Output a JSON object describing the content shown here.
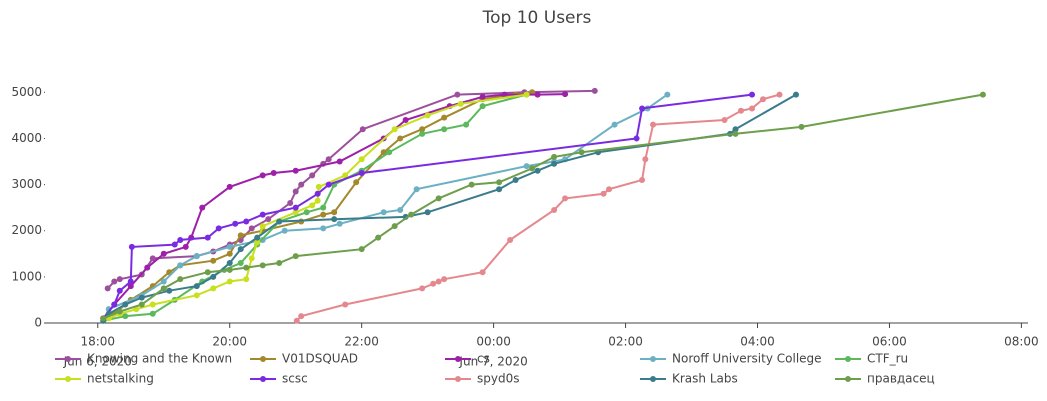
{
  "chart_data": {
    "type": "line",
    "title": "Top 10 Users",
    "xlim": [
      "2020-06-06T17:12",
      "2020-06-07T08:06"
    ],
    "xticks": [
      {
        "value": "2020-06-06T18:00",
        "label": "18:00",
        "sublabel": "Jun 6, 2020"
      },
      {
        "value": "2020-06-06T20:00",
        "label": "20:00"
      },
      {
        "value": "2020-06-06T22:00",
        "label": "22:00"
      },
      {
        "value": "2020-06-07T00:00",
        "label": "00:00",
        "sublabel": "Jun 7, 2020"
      },
      {
        "value": "2020-06-07T02:00",
        "label": "02:00"
      },
      {
        "value": "2020-06-07T04:00",
        "label": "04:00"
      },
      {
        "value": "2020-06-07T06:00",
        "label": "06:00"
      },
      {
        "value": "2020-06-07T08:00",
        "label": "08:00"
      }
    ],
    "ylim": [
      0,
      5700
    ],
    "yticks": [
      0,
      1000,
      2000,
      3000,
      4000,
      5000
    ],
    "grid": false,
    "series": [
      {
        "name": "Knowing and the Known",
        "color": "#9c4f9c",
        "x": [
          "2020-06-06T18:09",
          "2020-06-06T18:15",
          "2020-06-06T18:20",
          "2020-06-06T18:40",
          "2020-06-06T18:50",
          "2020-06-06T19:30",
          "2020-06-06T19:45",
          "2020-06-06T20:00",
          "2020-06-06T20:10",
          "2020-06-06T20:20",
          "2020-06-06T20:35",
          "2020-06-06T20:55",
          "2020-06-06T21:00",
          "2020-06-06T21:05",
          "2020-06-06T21:15",
          "2020-06-06T21:25",
          "2020-06-06T21:30",
          "2020-06-06T22:01",
          "2020-06-06T23:27",
          "2020-06-07T00:28",
          "2020-06-07T01:32"
        ],
        "values": [
          750,
          900,
          950,
          1050,
          1400,
          1450,
          1550,
          1700,
          1800,
          2050,
          2250,
          2600,
          2850,
          3000,
          3200,
          3450,
          3550,
          4200,
          4950,
          5000,
          5030
        ]
      },
      {
        "name": "V01DSQUAD",
        "color": "#a3882c",
        "x": [
          "2020-06-06T18:05",
          "2020-06-06T18:15",
          "2020-06-06T18:30",
          "2020-06-06T18:50",
          "2020-06-06T19:05",
          "2020-06-06T19:15",
          "2020-06-06T19:45",
          "2020-06-06T20:00",
          "2020-06-06T20:10",
          "2020-06-06T20:30",
          "2020-06-06T21:05",
          "2020-06-06T21:25",
          "2020-06-06T21:35",
          "2020-06-06T21:55",
          "2020-06-06T22:20",
          "2020-06-06T22:35",
          "2020-06-06T22:55",
          "2020-06-06T23:15",
          "2020-06-06T23:50",
          "2020-06-07T00:20",
          "2020-06-07T00:35"
        ],
        "values": [
          100,
          200,
          500,
          800,
          1100,
          1250,
          1350,
          1500,
          1900,
          2000,
          2200,
          2350,
          2400,
          3050,
          3700,
          4000,
          4200,
          4450,
          4850,
          4950,
          5000
        ]
      },
      {
        "name": "cs",
        "color": "#9c20a8",
        "x": [
          "2020-06-06T18:05",
          "2020-06-06T18:15",
          "2020-06-06T18:30",
          "2020-06-06T18:45",
          "2020-06-06T19:00",
          "2020-06-06T19:20",
          "2020-06-06T19:25",
          "2020-06-06T19:35",
          "2020-06-06T20:00",
          "2020-06-06T20:30",
          "2020-06-06T20:40",
          "2020-06-06T21:00",
          "2020-06-06T21:40",
          "2020-06-06T22:20",
          "2020-06-06T22:40",
          "2020-06-06T23:20",
          "2020-06-06T23:50",
          "2020-06-07T00:10",
          "2020-06-07T00:40",
          "2020-06-07T01:05"
        ],
        "values": [
          100,
          400,
          800,
          1200,
          1500,
          1650,
          1850,
          2500,
          2950,
          3200,
          3250,
          3300,
          3500,
          4000,
          4400,
          4700,
          4900,
          4950,
          4950,
          4960
        ]
      },
      {
        "name": "Noroff University College",
        "color": "#6cb0c4",
        "x": [
          "2020-06-06T18:10",
          "2020-06-06T18:40",
          "2020-06-06T19:00",
          "2020-06-06T19:15",
          "2020-06-06T19:30",
          "2020-06-06T20:00",
          "2020-06-06T20:30",
          "2020-06-06T20:50",
          "2020-06-06T21:25",
          "2020-06-06T21:40",
          "2020-06-06T22:20",
          "2020-06-06T22:35",
          "2020-06-06T22:50",
          "2020-06-07T00:30",
          "2020-06-07T00:55",
          "2020-06-07T01:05",
          "2020-06-07T01:50",
          "2020-06-07T02:20",
          "2020-06-07T02:38"
        ],
        "values": [
          300,
          600,
          900,
          1250,
          1450,
          1650,
          1800,
          2000,
          2050,
          2150,
          2400,
          2450,
          2900,
          3400,
          3500,
          3550,
          4300,
          4650,
          4950
        ]
      },
      {
        "name": "CTF_ru",
        "color": "#5cb85c",
        "x": [
          "2020-06-06T18:05",
          "2020-06-06T18:25",
          "2020-06-06T18:50",
          "2020-06-06T19:10",
          "2020-06-06T19:35",
          "2020-06-06T19:55",
          "2020-06-06T20:10",
          "2020-06-06T20:25",
          "2020-06-06T20:45",
          "2020-06-06T21:10",
          "2020-06-06T21:25",
          "2020-06-06T21:35",
          "2020-06-06T22:00",
          "2020-06-06T22:25",
          "2020-06-06T22:55",
          "2020-06-06T23:15",
          "2020-06-06T23:35",
          "2020-06-06T23:50",
          "2020-06-07T00:30"
        ],
        "values": [
          50,
          150,
          200,
          500,
          900,
          1150,
          1300,
          1700,
          2200,
          2400,
          2500,
          3000,
          3300,
          3700,
          4100,
          4200,
          4300,
          4700,
          4950
        ]
      },
      {
        "name": "netstalking",
        "color": "#c8e01e",
        "x": [
          "2020-06-06T18:10",
          "2020-06-06T18:20",
          "2020-06-06T18:35",
          "2020-06-06T18:50",
          "2020-06-06T19:30",
          "2020-06-06T19:45",
          "2020-06-06T20:00",
          "2020-06-06T20:15",
          "2020-06-06T20:20",
          "2020-06-06T20:25",
          "2020-06-06T20:30",
          "2020-06-06T21:00",
          "2020-06-06T21:15",
          "2020-06-06T21:20",
          "2020-06-06T21:21",
          "2020-06-06T21:45",
          "2020-06-06T22:00",
          "2020-06-06T22:30",
          "2020-06-06T23:00",
          "2020-06-06T23:30",
          "2020-06-07T00:30"
        ],
        "values": [
          100,
          200,
          300,
          400,
          600,
          750,
          900,
          950,
          1400,
          1750,
          2100,
          2400,
          2550,
          2650,
          2950,
          3200,
          3550,
          4200,
          4500,
          4750,
          4950
        ]
      },
      {
        "name": "scsc",
        "color": "#7a2be2",
        "x": [
          "2020-06-06T18:05",
          "2020-06-06T18:15",
          "2020-06-06T18:20",
          "2020-06-06T18:30",
          "2020-06-06T18:31",
          "2020-06-06T19:10",
          "2020-06-06T19:15",
          "2020-06-06T19:40",
          "2020-06-06T19:50",
          "2020-06-06T20:05",
          "2020-06-06T20:15",
          "2020-06-06T20:30",
          "2020-06-06T21:00",
          "2020-06-06T21:20",
          "2020-06-06T21:30",
          "2020-06-06T22:00",
          "2020-06-07T02:10",
          "2020-06-07T02:15",
          "2020-06-07T03:55"
        ],
        "values": [
          100,
          400,
          700,
          900,
          1650,
          1700,
          1800,
          1850,
          2050,
          2150,
          2200,
          2350,
          2500,
          2800,
          3000,
          3250,
          4000,
          4650,
          4950
        ]
      },
      {
        "name": "spyd0s",
        "color": "#e5888e",
        "x": [
          "2020-06-06T21:01",
          "2020-06-06T21:05",
          "2020-06-06T21:45",
          "2020-06-06T22:55",
          "2020-06-06T23:05",
          "2020-06-06T23:10",
          "2020-06-06T23:15",
          "2020-06-06T23:50",
          "2020-06-07T00:15",
          "2020-06-07T00:55",
          "2020-06-07T01:05",
          "2020-06-07T01:40",
          "2020-06-07T01:45",
          "2020-06-07T02:15",
          "2020-06-07T02:18",
          "2020-06-07T02:25",
          "2020-06-07T03:30",
          "2020-06-07T03:45",
          "2020-06-07T03:55",
          "2020-06-07T04:05",
          "2020-06-07T04:20"
        ],
        "values": [
          50,
          150,
          400,
          750,
          850,
          900,
          950,
          1100,
          1800,
          2450,
          2700,
          2800,
          2900,
          3100,
          3550,
          4300,
          4400,
          4600,
          4650,
          4850,
          4950
        ]
      },
      {
        "name": "Krash Labs",
        "color": "#3b7c8c",
        "x": [
          "2020-06-06T18:05",
          "2020-06-06T18:10",
          "2020-06-06T18:25",
          "2020-06-06T18:40",
          "2020-06-06T19:05",
          "2020-06-06T19:30",
          "2020-06-06T19:45",
          "2020-06-06T20:00",
          "2020-06-06T20:10",
          "2020-06-06T20:25",
          "2020-06-06T20:45",
          "2020-06-06T21:35",
          "2020-06-06T22:40",
          "2020-06-06T23:00",
          "2020-06-07T00:05",
          "2020-06-07T00:20",
          "2020-06-07T00:40",
          "2020-06-07T00:55",
          "2020-06-07T01:35",
          "2020-06-07T03:35",
          "2020-06-07T03:40",
          "2020-06-07T04:35"
        ],
        "values": [
          50,
          200,
          400,
          550,
          700,
          800,
          1000,
          1300,
          1600,
          1850,
          2200,
          2250,
          2300,
          2400,
          2900,
          3100,
          3300,
          3450,
          3700,
          4100,
          4200,
          4950
        ]
      },
      {
        "name": "правдасец",
        "color": "#6d9e4c",
        "x": [
          "2020-06-06T18:05",
          "2020-06-06T18:20",
          "2020-06-06T18:40",
          "2020-06-06T19:00",
          "2020-06-06T19:15",
          "2020-06-06T19:40",
          "2020-06-06T20:00",
          "2020-06-06T20:15",
          "2020-06-06T20:30",
          "2020-06-06T20:45",
          "2020-06-06T21:00",
          "2020-06-06T22:00",
          "2020-06-06T22:15",
          "2020-06-06T22:30",
          "2020-06-06T22:45",
          "2020-06-06T23:10",
          "2020-06-06T23:40",
          "2020-06-07T00:05",
          "2020-06-07T00:35",
          "2020-06-07T00:55",
          "2020-06-07T01:20",
          "2020-06-07T03:40",
          "2020-06-07T04:40",
          "2020-06-07T07:25"
        ],
        "values": [
          100,
          250,
          400,
          750,
          950,
          1100,
          1150,
          1200,
          1250,
          1300,
          1450,
          1600,
          1850,
          2100,
          2350,
          2700,
          3000,
          3050,
          3350,
          3600,
          3700,
          4100,
          4250,
          4950
        ]
      }
    ]
  }
}
